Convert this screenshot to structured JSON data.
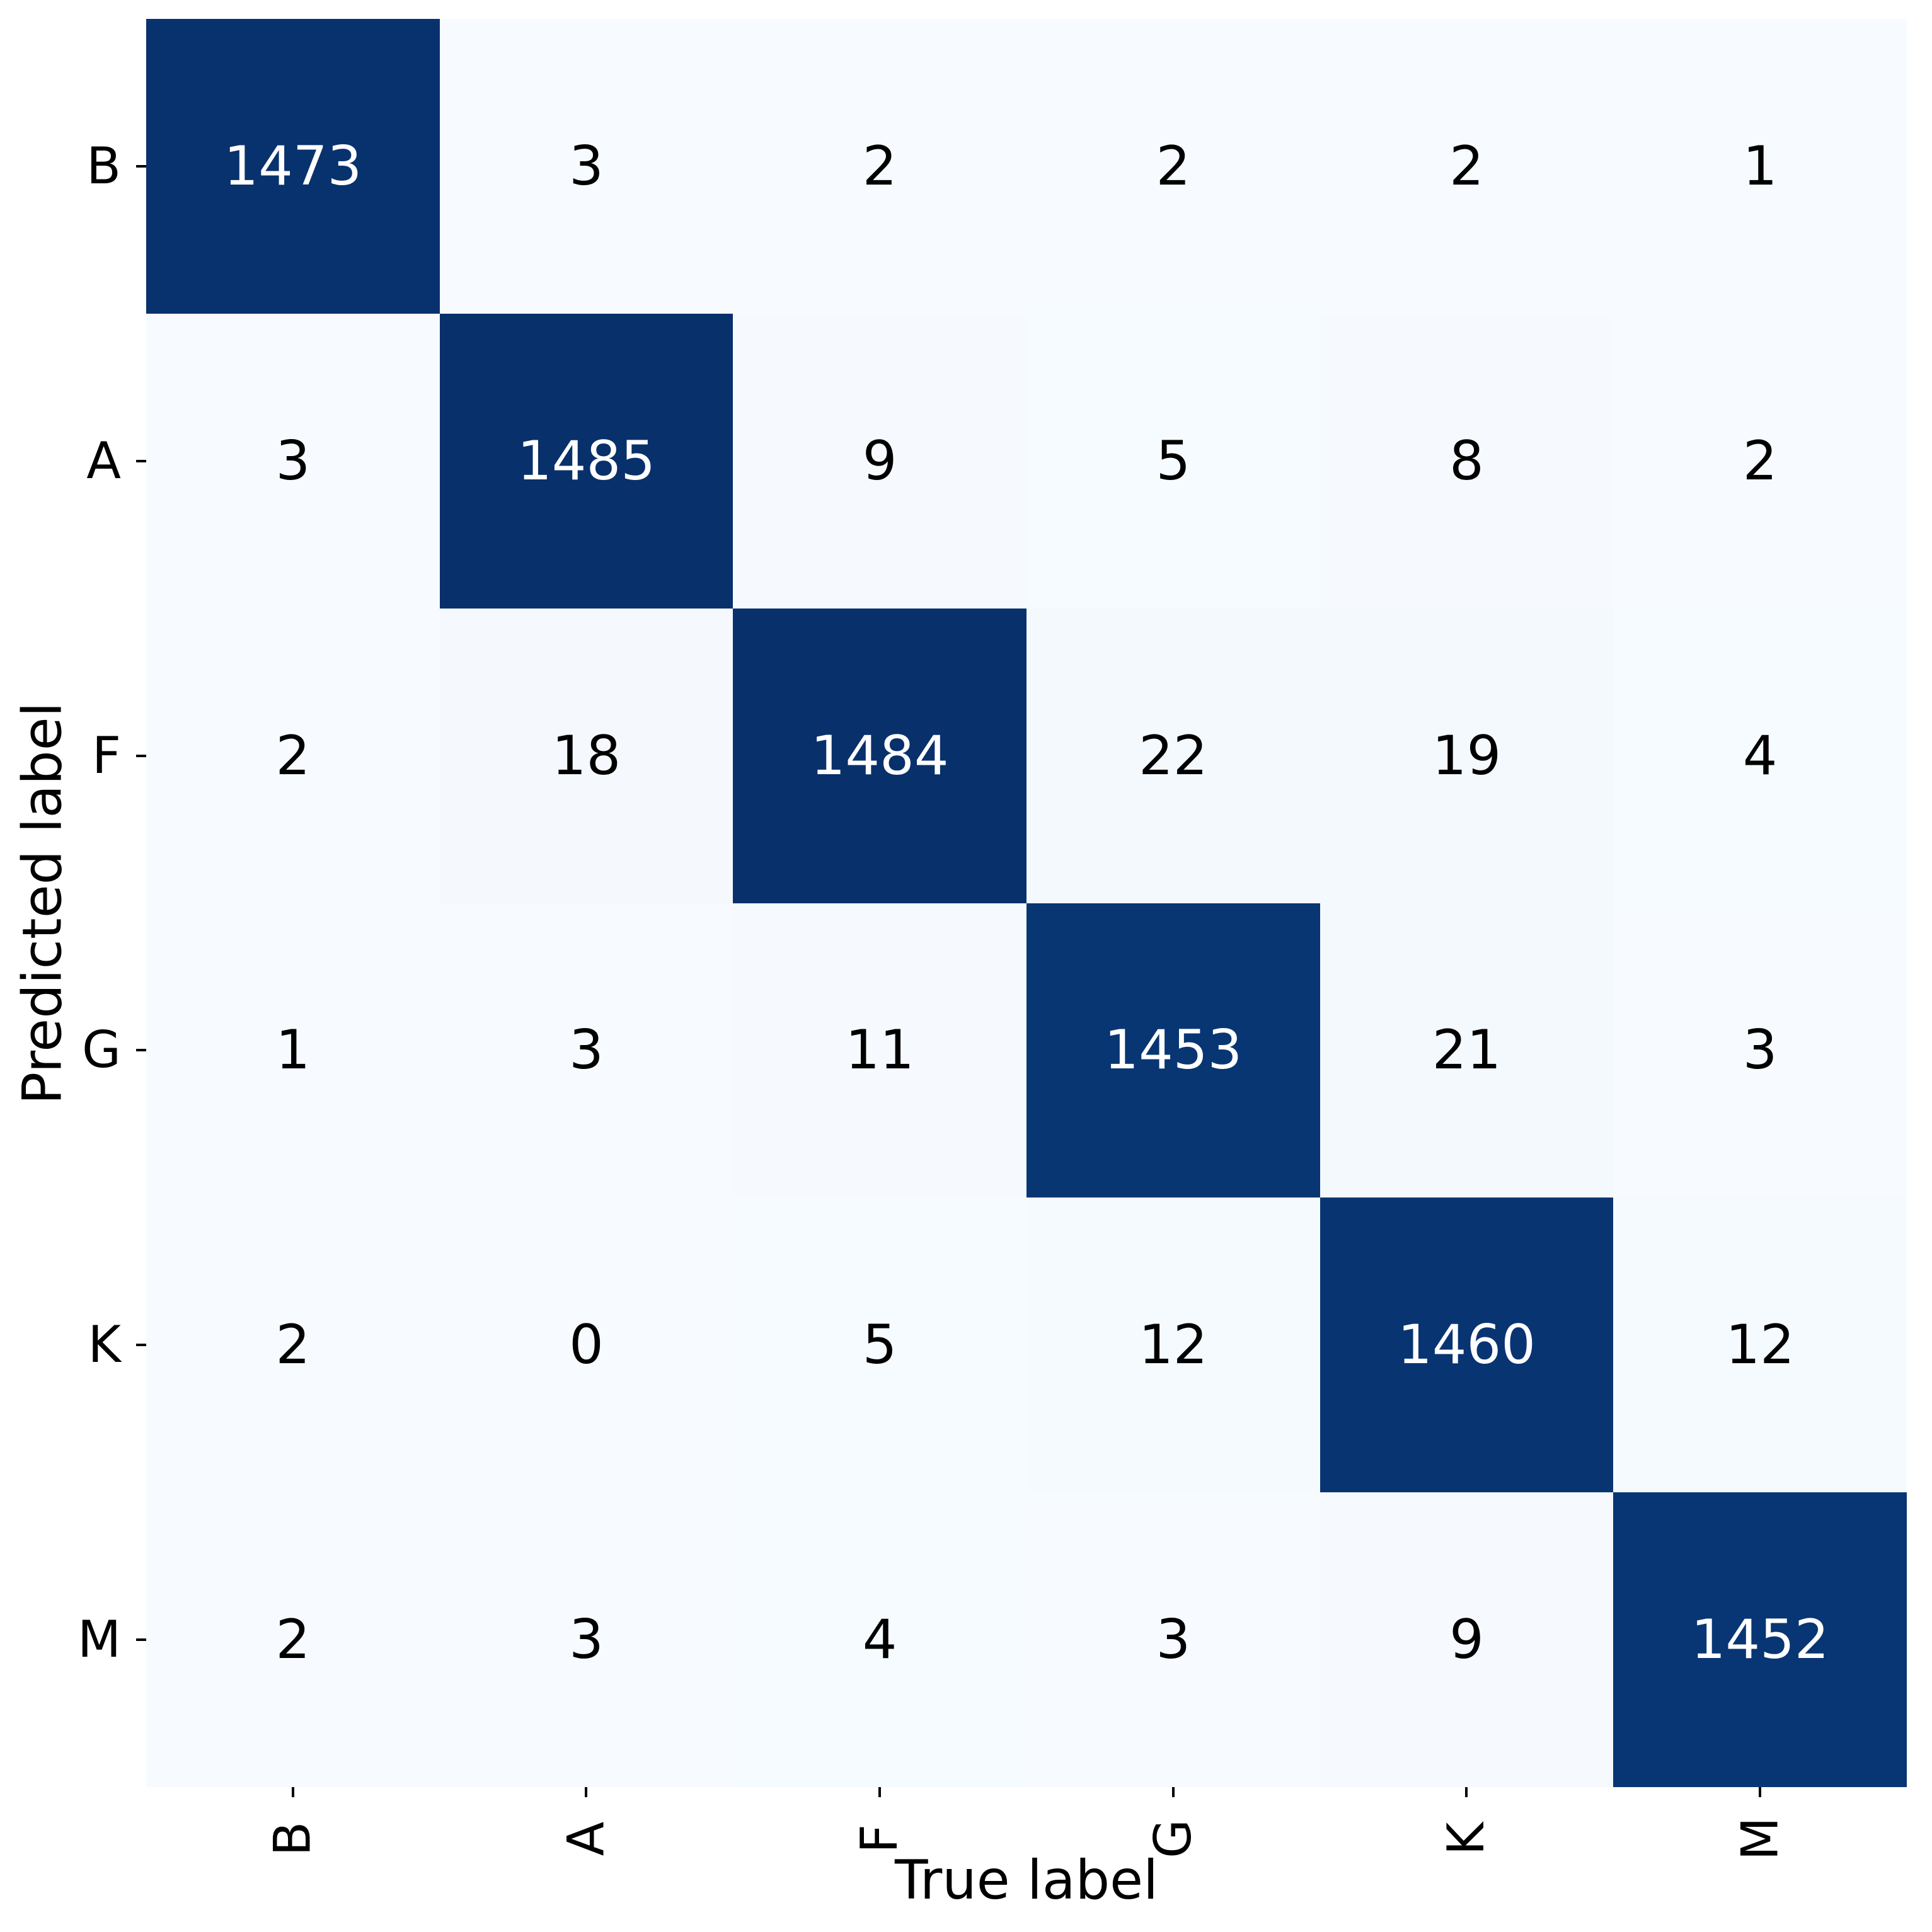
{
  "chart_data": {
    "type": "heatmap",
    "title": "",
    "xlabel": "True label",
    "ylabel": "Predicted label",
    "categories_x": [
      "B",
      "A",
      "F",
      "G",
      "K",
      "M"
    ],
    "categories_y": [
      "B",
      "A",
      "F",
      "G",
      "K",
      "M"
    ],
    "matrix": [
      [
        1473,
        3,
        2,
        2,
        2,
        1
      ],
      [
        3,
        1485,
        9,
        5,
        8,
        2
      ],
      [
        2,
        18,
        1484,
        22,
        19,
        4
      ],
      [
        1,
        3,
        11,
        1453,
        21,
        3
      ],
      [
        2,
        0,
        5,
        12,
        1460,
        12
      ],
      [
        2,
        3,
        4,
        3,
        9,
        1452
      ]
    ],
    "vmin": 0,
    "vmax": 1485,
    "colormap": "Blues",
    "color_low": "#f7fbff",
    "color_high": "#08306b",
    "cell_text_on_light": "#000000",
    "cell_text_on_dark": "#ffffff",
    "x_tick_rotation_deg": 90,
    "grid": "off",
    "legend": "none"
  }
}
